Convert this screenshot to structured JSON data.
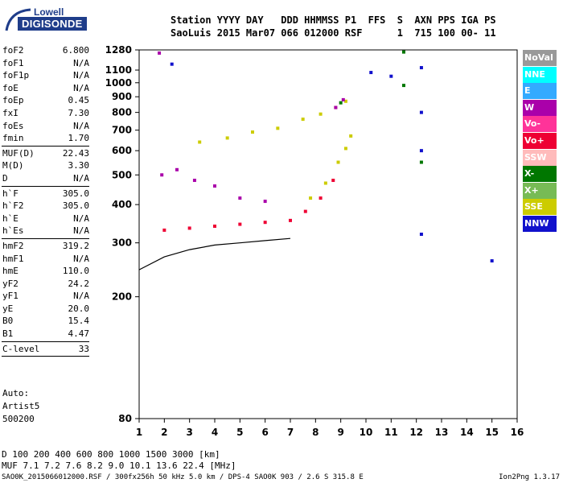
{
  "logo": {
    "top": "Lowell",
    "bottom": "DIGISONDE"
  },
  "header": {
    "line1": "Station YYYY DAY   DDD HHMMSS P1  FFS  S  AXN PPS IGA PS",
    "line2": "SaoLuis 2015 Mar07 066 012000 RSF      1  715 100 00- 11"
  },
  "params": [
    [
      {
        "name": "foF2",
        "value": "6.800"
      },
      {
        "name": "foF1",
        "value": "N/A"
      },
      {
        "name": "foF1p",
        "value": "N/A"
      },
      {
        "name": "foE",
        "value": "N/A"
      },
      {
        "name": "foEp",
        "value": "0.45"
      },
      {
        "name": "fxI",
        "value": "7.30"
      },
      {
        "name": "foEs",
        "value": "N/A"
      },
      {
        "name": "fmin",
        "value": "1.70"
      }
    ],
    [
      {
        "name": "MUF(D)",
        "value": "22.43"
      },
      {
        "name": "M(D)",
        "value": "3.30"
      },
      {
        "name": "D",
        "value": "N/A"
      }
    ],
    [
      {
        "name": "h`F",
        "value": "305.0"
      },
      {
        "name": "h`F2",
        "value": "305.0"
      },
      {
        "name": "h`E",
        "value": "N/A"
      },
      {
        "name": "h`Es",
        "value": "N/A"
      }
    ],
    [
      {
        "name": "hmF2",
        "value": "319.2"
      },
      {
        "name": "hmF1",
        "value": "N/A"
      },
      {
        "name": "hmE",
        "value": "110.0"
      },
      {
        "name": "yF2",
        "value": "24.2"
      },
      {
        "name": "yF1",
        "value": "N/A"
      },
      {
        "name": "yE",
        "value": "20.0"
      },
      {
        "name": "B0",
        "value": "15.4"
      },
      {
        "name": "B1",
        "value": "4.47"
      }
    ],
    [
      {
        "name": "C-level",
        "value": "33"
      }
    ]
  ],
  "auto": {
    "line1": "Auto:",
    "line2": "Artist5",
    "line3": "500200"
  },
  "legend": [
    {
      "label": "NoVal",
      "color": "#999999"
    },
    {
      "label": "NNE",
      "color": "#00ffff"
    },
    {
      "label": "E",
      "color": "#33aaff"
    },
    {
      "label": "W",
      "color": "#aa00aa"
    },
    {
      "label": "Vo-",
      "color": "#ff3399"
    },
    {
      "label": "Vo+",
      "color": "#ee0033"
    },
    {
      "label": "SSW",
      "color": "#ffbbbb"
    },
    {
      "label": "X-",
      "color": "#007700"
    },
    {
      "label": "X+",
      "color": "#77bb55"
    },
    {
      "label": "SSE",
      "color": "#cccc00"
    },
    {
      "label": "NNW",
      "color": "#1111cc"
    }
  ],
  "chart_data": {
    "type": "scatter",
    "title": "",
    "xlabel": "",
    "ylabel": "",
    "xlim": [
      1,
      16
    ],
    "ylim": [
      80,
      1280
    ],
    "x_ticks": [
      1,
      2,
      3,
      4,
      5,
      6,
      7,
      8,
      9,
      10,
      11,
      12,
      13,
      14,
      15,
      16
    ],
    "y_ticks": [
      80,
      200,
      300,
      400,
      500,
      600,
      700,
      800,
      900,
      1000,
      1100,
      1280
    ],
    "y_scale": "log",
    "grid": false,
    "legend_position": "right",
    "series": [
      {
        "name": "SSE",
        "color": "#cccc00",
        "points": [
          [
            3.4,
            640
          ],
          [
            4.5,
            660
          ],
          [
            5.5,
            690
          ],
          [
            6.5,
            710
          ],
          [
            7.5,
            760
          ],
          [
            8.2,
            790
          ],
          [
            8.8,
            830
          ],
          [
            9.2,
            870
          ],
          [
            7.8,
            420
          ],
          [
            8.4,
            470
          ],
          [
            8.9,
            550
          ],
          [
            9.2,
            610
          ],
          [
            9.4,
            670
          ]
        ]
      },
      {
        "name": "Vo+",
        "color": "#ee0033",
        "points": [
          [
            2.0,
            330
          ],
          [
            3.0,
            335
          ],
          [
            4.0,
            340
          ],
          [
            5.0,
            345
          ],
          [
            6.0,
            350
          ],
          [
            7.0,
            355
          ],
          [
            7.6,
            380
          ],
          [
            8.2,
            420
          ],
          [
            8.7,
            480
          ]
        ]
      },
      {
        "name": "W",
        "color": "#aa00aa",
        "points": [
          [
            1.8,
            1250
          ],
          [
            1.9,
            500
          ],
          [
            2.5,
            520
          ],
          [
            3.2,
            480
          ],
          [
            4.0,
            460
          ],
          [
            5.0,
            420
          ],
          [
            6.0,
            410
          ],
          [
            8.8,
            830
          ],
          [
            9.1,
            880
          ]
        ]
      },
      {
        "name": "NNW",
        "color": "#1111cc",
        "points": [
          [
            2.3,
            1150
          ],
          [
            10.2,
            1080
          ],
          [
            11.0,
            1050
          ],
          [
            12.2,
            1120
          ],
          [
            12.2,
            800
          ],
          [
            12.2,
            600
          ],
          [
            12.2,
            320
          ],
          [
            15.0,
            262
          ]
        ]
      },
      {
        "name": "X-",
        "color": "#007700",
        "points": [
          [
            11.5,
            1260
          ],
          [
            11.5,
            980
          ],
          [
            9.0,
            860
          ],
          [
            12.2,
            550
          ]
        ]
      },
      {
        "name": "trace",
        "color": "#000000",
        "points": [
          [
            1.0,
            245
          ],
          [
            2.0,
            270
          ],
          [
            3.0,
            285
          ],
          [
            4.0,
            295
          ],
          [
            5.0,
            300
          ],
          [
            6.0,
            305
          ],
          [
            7.0,
            310
          ]
        ]
      }
    ],
    "x_axis_table": {
      "D_label": "D",
      "D_values": [
        "100",
        "200",
        "400",
        "600",
        "800",
        "1000",
        "1500",
        "3000"
      ],
      "D_unit": "[km]",
      "MUF_label": "MUF",
      "MUF_values": [
        "7.1",
        "7.2",
        "7.6",
        "8.2",
        "9.0",
        "10.1",
        "13.6",
        "22.4"
      ],
      "MUF_unit": "[MHz]"
    }
  },
  "footer": {
    "info": "SAO0K_2015066012000.RSF / 300fx256h 50 kHz 5.0 km / DPS-4 SAO0K 903 / 2.6 S 315.8 E",
    "version": "Ion2Png 1.3.17"
  }
}
